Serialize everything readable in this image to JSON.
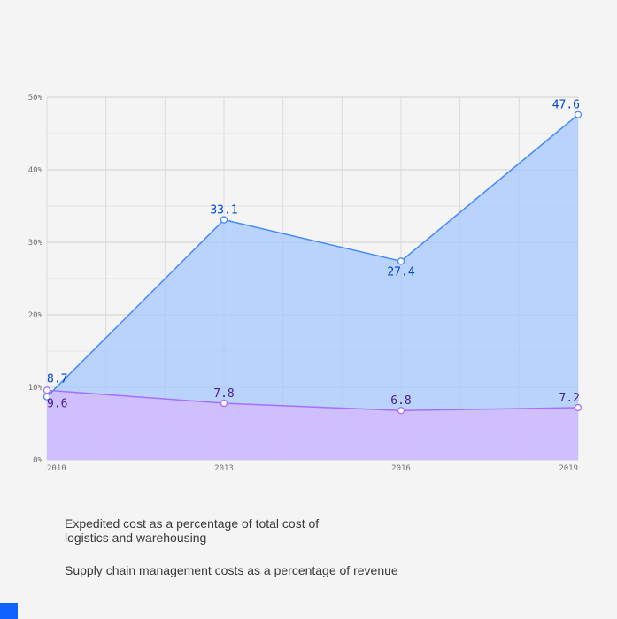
{
  "colors": {
    "expedited_line": "#4589ff",
    "expedited_fill": "#a6c8ff",
    "scm_line": "#a56eff",
    "scm_fill": "#d4bbff",
    "label_blue": "#0043ce",
    "label_purple": "#491d8b",
    "accent": "#0f62fe"
  },
  "chart_data": {
    "type": "area",
    "x": [
      2010,
      2013,
      2016,
      2019
    ],
    "x_tick_labels": [
      "2010",
      "2013",
      "2016",
      "2019"
    ],
    "y_tick_labels": [
      "0%",
      "10%",
      "20%",
      "30%",
      "40%",
      "50%"
    ],
    "ylim": [
      0,
      50
    ],
    "grid": true,
    "series": [
      {
        "name": "Expedited cost as a percentage of total cost of logistics and warehousing",
        "values": [
          8.7,
          33.1,
          27.4,
          47.6
        ],
        "labels": [
          "8.7",
          "33.1",
          "27.4",
          "47.6"
        ]
      },
      {
        "name": "Supply chain management costs as a percentage of revenue",
        "values": [
          9.6,
          7.8,
          6.8,
          7.2
        ],
        "labels": [
          "9.6",
          "7.8",
          "6.8",
          "7.2"
        ]
      }
    ]
  },
  "legend": {
    "item_1": "Expedited cost as a percentage of total cost of logistics and warehousing",
    "item_2": "Supply chain management costs as a percentage of revenue"
  }
}
